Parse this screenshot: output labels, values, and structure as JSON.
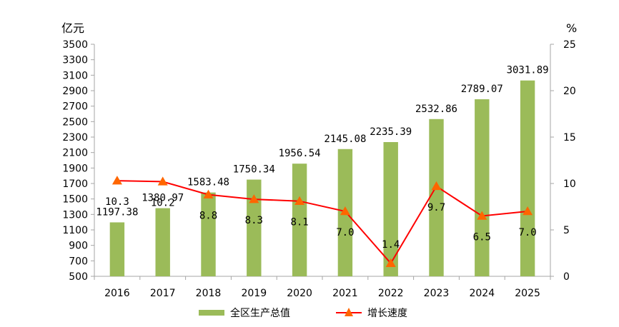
{
  "chart_data": {
    "type": "bar",
    "categories": [
      "2016",
      "2017",
      "2018",
      "2019",
      "2020",
      "2021",
      "2022",
      "2023",
      "2024",
      "2025"
    ],
    "series": [
      {
        "name": "全区生产总值",
        "chart_type": "bar",
        "axis": "left",
        "values": [
          1197.38,
          1380.97,
          1583.48,
          1750.34,
          1956.54,
          2145.08,
          2235.39,
          2532.86,
          2789.07,
          3031.89
        ],
        "labels": [
          "1197.38",
          "1380.97",
          "1583.48",
          "1750.34",
          "1956.54",
          "2145.08",
          "2235.39",
          "2532.86",
          "2789.07",
          "3031.89"
        ]
      },
      {
        "name": "增长速度",
        "chart_type": "line",
        "axis": "right",
        "marker": "triangle",
        "values": [
          10.3,
          10.2,
          8.8,
          8.3,
          8.1,
          7.0,
          1.4,
          9.7,
          6.5,
          7.0
        ],
        "labels": [
          "10.3",
          "10.2",
          "8.8",
          "8.3",
          "8.1",
          "7.0",
          "1.4",
          "9.7",
          "6.5",
          "7.0"
        ]
      }
    ],
    "y_left": {
      "unit": "亿元",
      "ylim": [
        500,
        3500
      ],
      "ticks": [
        "500",
        "700",
        "900",
        "1100",
        "1300",
        "1500",
        "1700",
        "1900",
        "2100",
        "2300",
        "2500",
        "2700",
        "2900",
        "3100",
        "3300",
        "3500"
      ]
    },
    "y_right": {
      "unit": "%",
      "ylim": [
        0,
        25
      ],
      "ticks": [
        "0",
        "5",
        "10",
        "15",
        "20",
        "25"
      ]
    },
    "grid": false,
    "legend": "bottom",
    "colors": {
      "bar": "#9BBB59",
      "line": "#FF0000",
      "marker": "#FF6600",
      "axis": "#a6a6a6"
    }
  }
}
